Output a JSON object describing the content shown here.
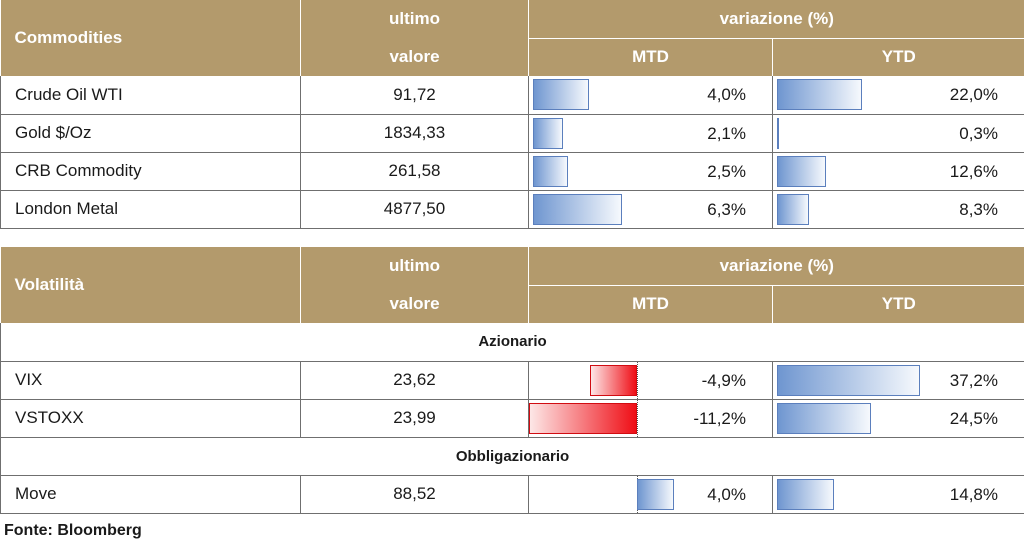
{
  "commodities": {
    "header": {
      "title": "Commodities",
      "last_1": "ultimo",
      "last_2": "valore",
      "change": "variazione (%)",
      "mtd": "MTD",
      "ytd": "YTD"
    },
    "rows": [
      {
        "name": "Crude Oil WTI",
        "value": "91,72",
        "mtd": "4,0%",
        "ytd": "22,0%",
        "mtd_num": 4.0,
        "ytd_num": 22.0
      },
      {
        "name": "Gold $/Oz",
        "value": "1834,33",
        "mtd": "2,1%",
        "ytd": "0,3%",
        "mtd_num": 2.1,
        "ytd_num": 0.3
      },
      {
        "name": "CRB Commodity",
        "value": "261,58",
        "mtd": "2,5%",
        "ytd": "12,6%",
        "mtd_num": 2.5,
        "ytd_num": 12.6
      },
      {
        "name": "London Metal",
        "value": "4877,50",
        "mtd": "6,3%",
        "ytd": "8,3%",
        "mtd_num": 6.3,
        "ytd_num": 8.3
      }
    ]
  },
  "volatility": {
    "header": {
      "title": "Volatilità",
      "last_1": "ultimo",
      "last_2": "valore",
      "change": "variazione (%)",
      "mtd": "MTD",
      "ytd": "YTD"
    },
    "sections": [
      {
        "label": "Azionario",
        "rows": [
          {
            "name": "VIX",
            "value": "23,62",
            "mtd": "-4,9%",
            "ytd": "37,2%",
            "mtd_num": -4.9,
            "ytd_num": 37.2
          },
          {
            "name": "VSTOXX",
            "value": "23,99",
            "mtd": "-11,2%",
            "ytd": "24,5%",
            "mtd_num": -11.2,
            "ytd_num": 24.5
          }
        ]
      },
      {
        "label": "Obbligazionario",
        "rows": [
          {
            "name": "Move",
            "value": "88,52",
            "mtd": "4,0%",
            "ytd": "14,8%",
            "mtd_num": 4.0,
            "ytd_num": 14.8
          }
        ]
      }
    ]
  },
  "source": "Fonte: Bloomberg",
  "colors": {
    "header_bg": "#b39a6c",
    "bar_positive": "#6f96d0",
    "bar_negative": "#ef0e16"
  }
}
